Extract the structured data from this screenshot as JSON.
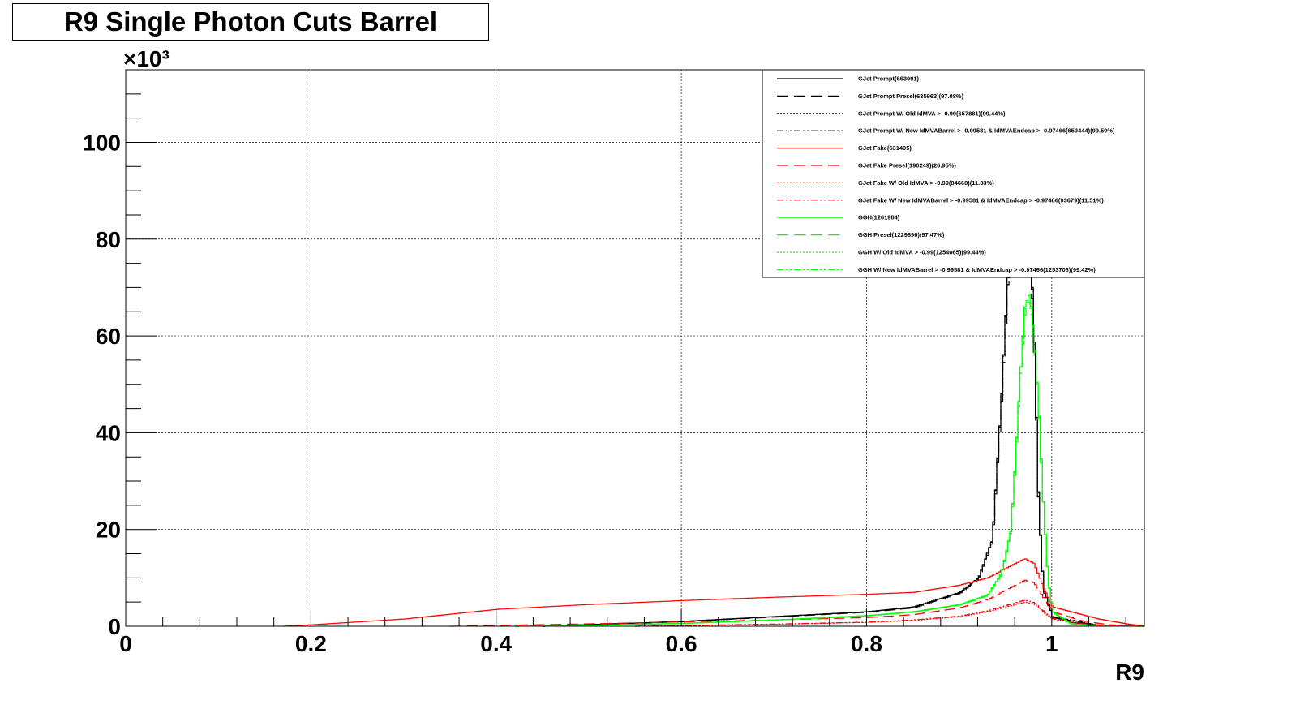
{
  "chart_data": {
    "type": "histogram-line",
    "title": "R9 Single Photon Cuts Barrel",
    "xlabel": "R9",
    "ylabel": "",
    "y_multiplier": "×10³",
    "xlim": [
      0,
      1.1
    ],
    "ylim": [
      0,
      115000
    ],
    "grid": true,
    "legend_position": "top-right",
    "x_ticks": [
      0,
      0.2,
      0.4,
      0.6,
      0.8,
      1
    ],
    "x_tick_labels": [
      "0",
      "0.2",
      "0.4",
      "0.6",
      "0.8",
      "1"
    ],
    "y_ticks": [
      0,
      20000,
      40000,
      60000,
      80000,
      100000
    ],
    "y_tick_labels": [
      "0",
      "20",
      "40",
      "60",
      "80",
      "100"
    ],
    "series": [
      {
        "name": "GJet Prompt(663091)",
        "color": "#000000",
        "dash": "solid",
        "points": [
          [
            0.45,
            0
          ],
          [
            0.6,
            1000
          ],
          [
            0.7,
            2000
          ],
          [
            0.8,
            3000
          ],
          [
            0.85,
            4000
          ],
          [
            0.9,
            7000
          ],
          [
            0.92,
            10000
          ],
          [
            0.935,
            18000
          ],
          [
            0.945,
            48000
          ],
          [
            0.955,
            85000
          ],
          [
            0.96,
            110000
          ],
          [
            0.97,
            110000
          ],
          [
            0.98,
            60000
          ],
          [
            0.985,
            25000
          ],
          [
            0.99,
            8000
          ],
          [
            1.0,
            2000
          ],
          [
            1.02,
            800
          ],
          [
            1.05,
            200
          ],
          [
            1.1,
            0
          ]
        ]
      },
      {
        "name": "GJet Prompt Presel(635963)(97.08%)",
        "color": "#000000",
        "dash": "14,7",
        "points": [
          [
            0.45,
            0
          ],
          [
            0.6,
            950
          ],
          [
            0.7,
            1900
          ],
          [
            0.8,
            2900
          ],
          [
            0.85,
            3800
          ],
          [
            0.9,
            6800
          ],
          [
            0.92,
            9700
          ],
          [
            0.935,
            17500
          ],
          [
            0.945,
            46500
          ],
          [
            0.955,
            83000
          ],
          [
            0.96,
            107000
          ],
          [
            0.97,
            107000
          ],
          [
            0.98,
            58000
          ],
          [
            0.985,
            24000
          ],
          [
            0.99,
            7500
          ],
          [
            1.0,
            1800
          ],
          [
            1.05,
            150
          ],
          [
            1.1,
            0
          ]
        ]
      },
      {
        "name": "GJet Prompt W/ Old IdMVA > -0.99(657881)(99.44%)",
        "color": "#000000",
        "dash": "2,2",
        "points": [
          [
            0.45,
            0
          ],
          [
            0.6,
            990
          ],
          [
            0.7,
            1980
          ],
          [
            0.8,
            2980
          ],
          [
            0.85,
            3980
          ],
          [
            0.9,
            6950
          ],
          [
            0.92,
            9950
          ],
          [
            0.935,
            17900
          ],
          [
            0.945,
            47700
          ],
          [
            0.955,
            84500
          ],
          [
            0.96,
            109400
          ],
          [
            0.97,
            109400
          ],
          [
            0.98,
            59600
          ],
          [
            0.985,
            24800
          ],
          [
            0.99,
            7900
          ],
          [
            1.0,
            1950
          ],
          [
            1.05,
            190
          ],
          [
            1.1,
            0
          ]
        ]
      },
      {
        "name": "GJet Prompt W/ New IdMVABarrel > -0.99581 & IdMVAEndcap > -0.97466(659444)(99.50%)",
        "color": "#000000",
        "dash": "8,3,2,3,2,3",
        "points": [
          [
            0.45,
            0
          ],
          [
            0.6,
            995
          ],
          [
            0.7,
            1990
          ],
          [
            0.8,
            2985
          ],
          [
            0.85,
            3985
          ],
          [
            0.9,
            6965
          ],
          [
            0.92,
            9960
          ],
          [
            0.935,
            17920
          ],
          [
            0.945,
            47760
          ],
          [
            0.955,
            84580
          ],
          [
            0.96,
            109450
          ],
          [
            0.97,
            109450
          ],
          [
            0.98,
            59700
          ],
          [
            0.985,
            24870
          ],
          [
            0.99,
            7960
          ],
          [
            1.0,
            1990
          ],
          [
            1.05,
            199
          ],
          [
            1.1,
            0
          ]
        ]
      },
      {
        "name": "GJet Fake(631405)",
        "color": "#ff0000",
        "dash": "solid",
        "points": [
          [
            0.17,
            0
          ],
          [
            0.2,
            300
          ],
          [
            0.3,
            1500
          ],
          [
            0.4,
            3500
          ],
          [
            0.5,
            4500
          ],
          [
            0.6,
            5300
          ],
          [
            0.7,
            6000
          ],
          [
            0.8,
            6600
          ],
          [
            0.85,
            7000
          ],
          [
            0.9,
            8500
          ],
          [
            0.93,
            10000
          ],
          [
            0.95,
            12000
          ],
          [
            0.97,
            14000
          ],
          [
            0.98,
            13000
          ],
          [
            0.99,
            8000
          ],
          [
            1.0,
            4000
          ],
          [
            1.02,
            3000
          ],
          [
            1.05,
            1500
          ],
          [
            1.08,
            500
          ],
          [
            1.1,
            0
          ]
        ]
      },
      {
        "name": "GJet Fake Presel(190249)(26.95%)",
        "color": "#ff0000",
        "dash": "14,7",
        "points": [
          [
            0.35,
            0
          ],
          [
            0.5,
            500
          ],
          [
            0.6,
            900
          ],
          [
            0.7,
            1300
          ],
          [
            0.8,
            1800
          ],
          [
            0.85,
            2400
          ],
          [
            0.9,
            3800
          ],
          [
            0.93,
            5500
          ],
          [
            0.95,
            7500
          ],
          [
            0.97,
            9500
          ],
          [
            0.98,
            9000
          ],
          [
            0.99,
            6000
          ],
          [
            1.0,
            3000
          ],
          [
            1.03,
            1200
          ],
          [
            1.06,
            300
          ],
          [
            1.1,
            0
          ]
        ]
      },
      {
        "name": "GJet Fake W/ Old IdMVA > -0.99(84660)(11.33%)",
        "color": "#ff0000",
        "dash": "2,2",
        "points": [
          [
            0.55,
            0
          ],
          [
            0.7,
            400
          ],
          [
            0.8,
            800
          ],
          [
            0.85,
            1200
          ],
          [
            0.9,
            2000
          ],
          [
            0.93,
            3000
          ],
          [
            0.95,
            4000
          ],
          [
            0.97,
            5000
          ],
          [
            0.98,
            4600
          ],
          [
            0.99,
            3000
          ],
          [
            1.0,
            1500
          ],
          [
            1.03,
            500
          ],
          [
            1.06,
            100
          ],
          [
            1.1,
            0
          ]
        ]
      },
      {
        "name": "GJet Fake W/ New IdMVABarrel > -0.99581 & IdMVAEndcap > -0.97466(93679)(11.51%)",
        "color": "#ff0000",
        "dash": "8,3,2,3,2,3",
        "points": [
          [
            0.55,
            0
          ],
          [
            0.7,
            450
          ],
          [
            0.8,
            850
          ],
          [
            0.85,
            1300
          ],
          [
            0.9,
            2100
          ],
          [
            0.93,
            3200
          ],
          [
            0.95,
            4300
          ],
          [
            0.97,
            5400
          ],
          [
            0.98,
            4900
          ],
          [
            0.99,
            3200
          ],
          [
            1.0,
            1600
          ],
          [
            1.03,
            550
          ],
          [
            1.06,
            120
          ],
          [
            1.1,
            0
          ]
        ]
      },
      {
        "name": "GGH(1261984)",
        "color": "#00ff00",
        "dash": "solid",
        "points": [
          [
            0.42,
            0
          ],
          [
            0.5,
            200
          ],
          [
            0.6,
            600
          ],
          [
            0.7,
            1300
          ],
          [
            0.8,
            2200
          ],
          [
            0.85,
            3000
          ],
          [
            0.9,
            4500
          ],
          [
            0.93,
            6500
          ],
          [
            0.945,
            11000
          ],
          [
            0.955,
            20000
          ],
          [
            0.96,
            35000
          ],
          [
            0.965,
            52000
          ],
          [
            0.97,
            66000
          ],
          [
            0.975,
            69000
          ],
          [
            0.98,
            60000
          ],
          [
            0.985,
            45000
          ],
          [
            0.99,
            25000
          ],
          [
            0.995,
            10000
          ],
          [
            1.0,
            3000
          ],
          [
            1.02,
            500
          ],
          [
            1.05,
            50
          ],
          [
            1.1,
            0
          ]
        ]
      },
      {
        "name": "GGH Presel(1229896)(97.47%)",
        "color": "#00ff00",
        "dash": "14,7",
        "points": [
          [
            0.42,
            0
          ],
          [
            0.5,
            190
          ],
          [
            0.6,
            580
          ],
          [
            0.7,
            1260
          ],
          [
            0.8,
            2140
          ],
          [
            0.85,
            2920
          ],
          [
            0.9,
            4380
          ],
          [
            0.93,
            6330
          ],
          [
            0.945,
            10720
          ],
          [
            0.955,
            19500
          ],
          [
            0.96,
            34100
          ],
          [
            0.965,
            50700
          ],
          [
            0.97,
            64300
          ],
          [
            0.975,
            67300
          ],
          [
            0.98,
            58500
          ],
          [
            0.985,
            43900
          ],
          [
            0.99,
            24400
          ],
          [
            0.995,
            9750
          ],
          [
            1.0,
            2900
          ],
          [
            1.02,
            480
          ],
          [
            1.05,
            45
          ],
          [
            1.1,
            0
          ]
        ]
      },
      {
        "name": "GGH W/ Old IdMVA > -0.99(1254065)(99.44%)",
        "color": "#00ff00",
        "dash": "2,2",
        "points": [
          [
            0.42,
            0
          ],
          [
            0.5,
            199
          ],
          [
            0.6,
            597
          ],
          [
            0.7,
            1293
          ],
          [
            0.8,
            2188
          ],
          [
            0.85,
            2983
          ],
          [
            0.9,
            4475
          ],
          [
            0.93,
            6463
          ],
          [
            0.945,
            10940
          ],
          [
            0.955,
            19890
          ],
          [
            0.96,
            34800
          ],
          [
            0.965,
            51700
          ],
          [
            0.97,
            65600
          ],
          [
            0.975,
            68600
          ],
          [
            0.98,
            59660
          ],
          [
            0.985,
            44750
          ],
          [
            0.99,
            24860
          ],
          [
            0.995,
            9940
          ],
          [
            1.0,
            2980
          ],
          [
            1.02,
            497
          ],
          [
            1.05,
            50
          ],
          [
            1.1,
            0
          ]
        ]
      },
      {
        "name": "GGH W/ New IdMVABarrel > -0.99581 & IdMVAEndcap > -0.97466(1253706)(99.42%)",
        "color": "#00ff00",
        "dash": "8,3,2,3,2,3",
        "points": [
          [
            0.42,
            0
          ],
          [
            0.5,
            198
          ],
          [
            0.6,
            596
          ],
          [
            0.7,
            1292
          ],
          [
            0.8,
            2187
          ],
          [
            0.85,
            2982
          ],
          [
            0.9,
            4474
          ],
          [
            0.93,
            6462
          ],
          [
            0.945,
            10936
          ],
          [
            0.955,
            19884
          ],
          [
            0.96,
            34797
          ],
          [
            0.965,
            51698
          ],
          [
            0.97,
            65617
          ],
          [
            0.975,
            68600
          ],
          [
            0.98,
            59652
          ],
          [
            0.985,
            44739
          ],
          [
            0.99,
            24855
          ],
          [
            0.995,
            9942
          ],
          [
            1.0,
            2983
          ],
          [
            1.02,
            497
          ],
          [
            1.05,
            50
          ],
          [
            1.1,
            0
          ]
        ]
      }
    ]
  }
}
